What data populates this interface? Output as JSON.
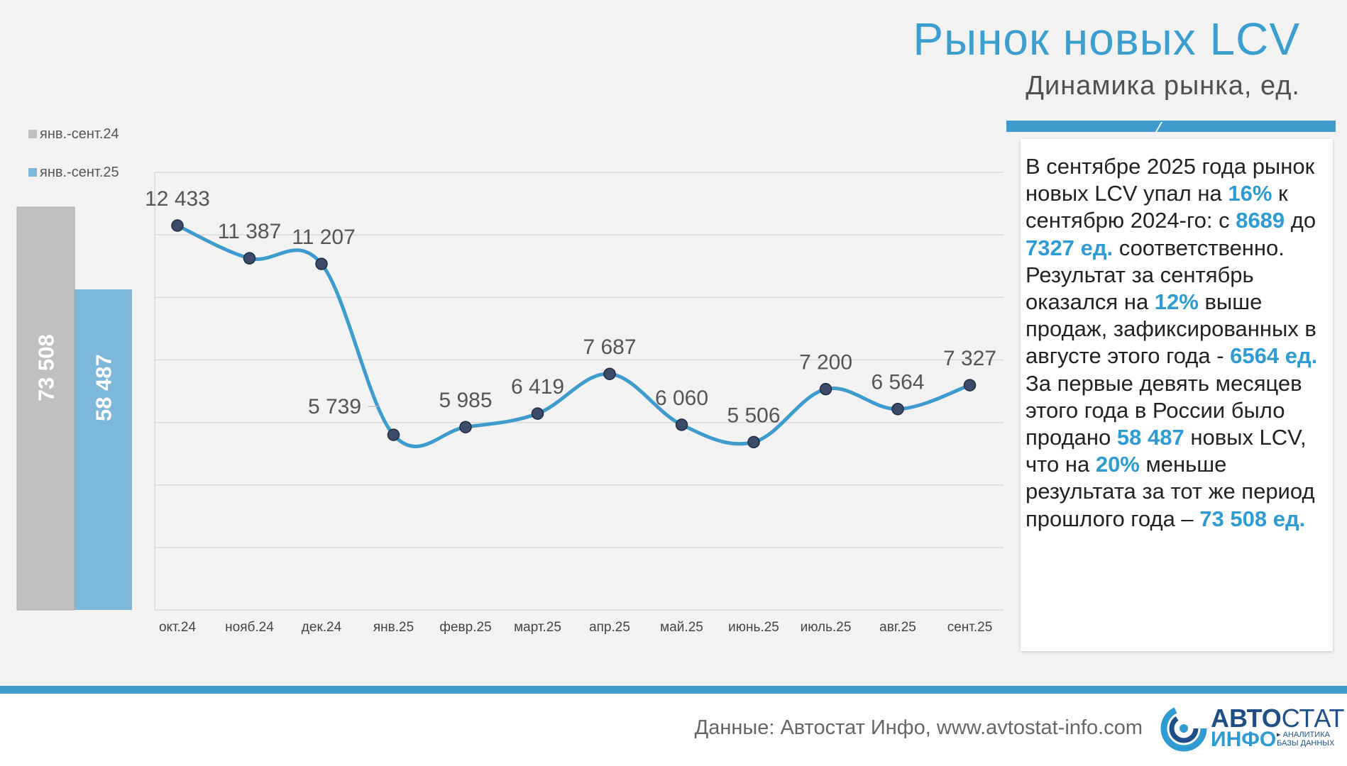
{
  "title": "Рынок новых LCV",
  "subtitle": "Динамика рынка, ед.",
  "legend": {
    "series_2024": {
      "label": "янв.-сент.24",
      "color": "#bfbfbf"
    },
    "series_2025": {
      "label": "янв.-сент.25",
      "color": "#7db8da"
    }
  },
  "chart_data": [
    {
      "type": "bar",
      "title": "",
      "categories": [
        "янв.-сент.24",
        "янв.-сент.25"
      ],
      "values": [
        73508,
        58487
      ],
      "value_labels": [
        "73 508",
        "58 487"
      ],
      "colors": [
        "#bfbfbf",
        "#7db8da"
      ],
      "ylim": [
        0,
        88000
      ]
    },
    {
      "type": "line",
      "title": "",
      "x": [
        "окт.24",
        "нояб.24",
        "дек.24",
        "янв.25",
        "февр.25",
        "март.25",
        "апр.25",
        "май.25",
        "июнь.25",
        "июль.25",
        "авг.25",
        "сент.25"
      ],
      "values": [
        12433,
        11387,
        11207,
        5739,
        5985,
        6419,
        7687,
        6060,
        5506,
        7200,
        6564,
        7327
      ],
      "value_labels": [
        "12 433",
        "11 387",
        "11 207",
        "5 739",
        "5 985",
        "6 419",
        "7 687",
        "6 060",
        "5 506",
        "7 200",
        "6 564",
        "7 327"
      ],
      "ylim": [
        0,
        14000
      ],
      "grid": true,
      "line_color": "#3d9bcd",
      "marker_color": "#3d4b6b"
    }
  ],
  "textbox": {
    "t1": "В сентябре 2025 года рынок новых LCV упал на ",
    "h1": "16%",
    "t2": " к сентябрю 2024-го: с ",
    "h2": "8689",
    "t3": " до ",
    "h3": "7327 ед.",
    "t4": " соответственно. Результат за сентябрь оказался на ",
    "h4": "12%",
    "t5": " выше продаж, зафиксированных в августе этого года  - ",
    "h5": "6564 ед.",
    "t6": " За первые девять месяцев этого года в России было продано ",
    "h6": "58 487",
    "t7": " новых LCV, что на ",
    "h7": "20%",
    "t8": " меньше результата за тот же период прошлого года – ",
    "h8": "73 508 ед."
  },
  "footer": {
    "source": "Данные: Автостат Инфо, www.avtostat-info.com",
    "logo_line1_bold": "АВТО",
    "logo_line1_thin": "СТАТ",
    "logo_line2": "ИНФО",
    "logo_sub1": "▸ АНАЛИТИКА",
    "logo_sub2": "БАЗЫ ДАННЫХ"
  }
}
